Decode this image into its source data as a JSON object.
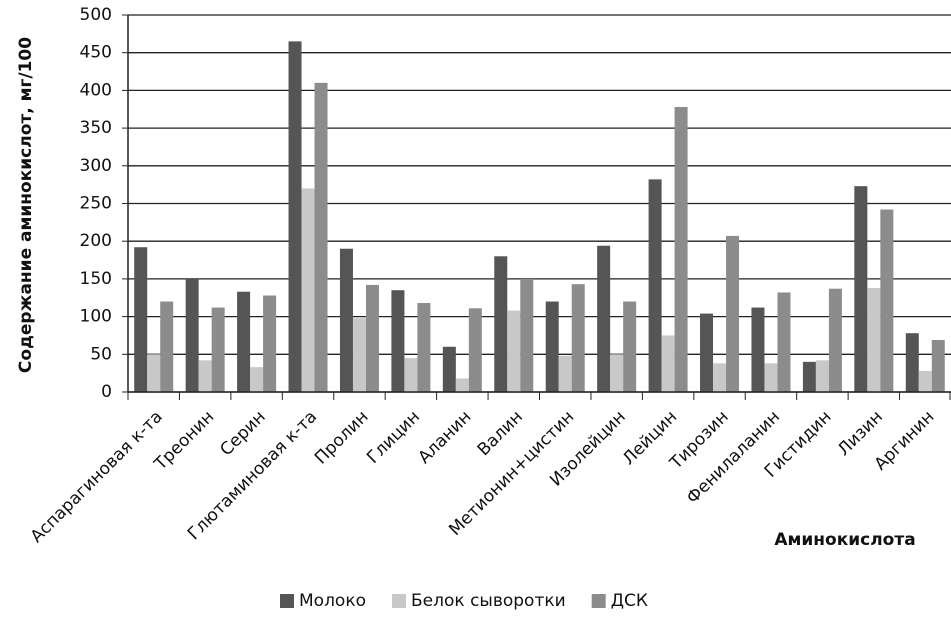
{
  "chart_data": {
    "type": "bar",
    "y_label": "Содержание аминокислот, мг/100",
    "x_label": "Аминокислота",
    "categories": [
      "Аспарагиновая к-та",
      "Треонин",
      "Серин",
      "Глютаминовая к-та",
      "Пролин",
      "Глицин",
      "Аланин",
      "Валин",
      "Метионин+цистин",
      "Изолейцин",
      "Лейцин",
      "Тирозин",
      "Фенилаланин",
      "Гистидин",
      "Лизин",
      "Аргинин"
    ],
    "series": [
      {
        "name": "Молоко",
        "color": "#555555",
        "values": [
          192,
          150,
          133,
          465,
          190,
          135,
          60,
          180,
          120,
          194,
          282,
          104,
          112,
          40,
          273,
          78
        ]
      },
      {
        "name": "Белок сыворотки",
        "color": "#c8c8c8",
        "values": [
          50,
          42,
          33,
          270,
          98,
          45,
          18,
          108,
          48,
          50,
          75,
          38,
          38,
          42,
          138,
          28
        ]
      },
      {
        "name": "ДСК",
        "color": "#8c8c8c",
        "values": [
          120,
          112,
          128,
          410,
          142,
          118,
          111,
          150,
          143,
          120,
          378,
          207,
          132,
          137,
          242,
          69
        ]
      }
    ],
    "ylim": [
      0,
      500
    ],
    "yticks": [
      0,
      50,
      100,
      150,
      200,
      250,
      300,
      350,
      400,
      450,
      500
    ],
    "grid": true
  }
}
